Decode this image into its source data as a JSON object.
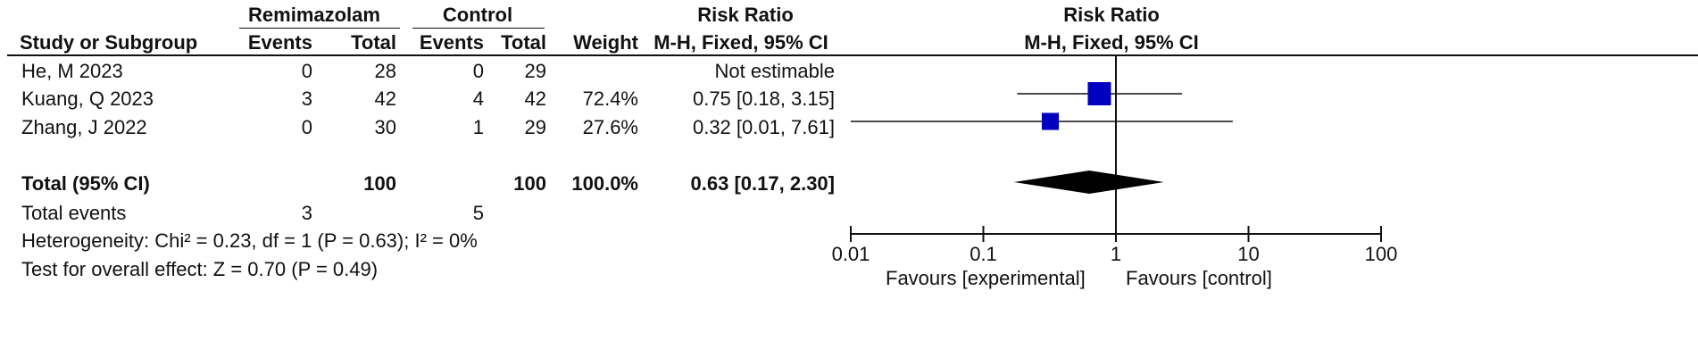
{
  "header": {
    "group1": "Remimazolam",
    "group2": "Control",
    "risk_ratio_left": "Risk Ratio",
    "risk_ratio_right": "Risk Ratio",
    "study_col": "Study or Subgroup",
    "events1": "Events",
    "total1": "Total",
    "events2": "Events",
    "total2": "Total",
    "weight": "Weight",
    "method_left": "M-H, Fixed, 95% CI",
    "method_right": "M-H, Fixed, 95% CI"
  },
  "studies": [
    {
      "name": "He, M 2023",
      "e1": "0",
      "n1": "28",
      "e2": "0",
      "n2": "29",
      "weight": "",
      "ci": "Not estimable"
    },
    {
      "name": "Kuang, Q 2023",
      "e1": "3",
      "n1": "42",
      "e2": "4",
      "n2": "42",
      "weight": "72.4%",
      "ci": "0.75 [0.18, 3.15]"
    },
    {
      "name": "Zhang, J 2022",
      "e1": "0",
      "n1": "30",
      "e2": "1",
      "n2": "29",
      "weight": "27.6%",
      "ci": "0.32 [0.01, 7.61]"
    }
  ],
  "total": {
    "name": "Total (95% CI)",
    "n1": "100",
    "n2": "100",
    "weight": "100.0%",
    "ci": "0.63 [0.17, 2.30]"
  },
  "total_events": {
    "label": "Total events",
    "e1": "3",
    "e2": "5"
  },
  "heterogeneity": "Heterogeneity: Chi² = 0.23, df = 1 (P = 0.63); I² = 0%",
  "overall_effect": "Test for overall effect: Z = 0.70 (P = 0.49)",
  "favours_left": "Favours [experimental]",
  "favours_right": "Favours [control]",
  "colors": {
    "marker": "#0000c0",
    "diamond": "#000000",
    "line": "#111111"
  },
  "chart_data": {
    "type": "forest",
    "scale": "log",
    "xlim": [
      0.01,
      100
    ],
    "ticks": [
      {
        "value": 0.01,
        "label": "0.01"
      },
      {
        "value": 0.1,
        "label": "0.1"
      },
      {
        "value": 1,
        "label": "1"
      },
      {
        "value": 10,
        "label": "10"
      },
      {
        "value": 100,
        "label": "100"
      }
    ],
    "studies": [
      {
        "name": "He, M 2023",
        "rr": null,
        "lower": null,
        "upper": null,
        "weight": 0
      },
      {
        "name": "Kuang, Q 2023",
        "rr": 0.75,
        "lower": 0.18,
        "upper": 3.15,
        "weight": 72.4
      },
      {
        "name": "Zhang, J 2022",
        "rr": 0.32,
        "lower": 0.01,
        "upper": 7.61,
        "weight": 27.6
      }
    ],
    "pooled": {
      "rr": 0.63,
      "lower": 0.17,
      "upper": 2.3
    }
  }
}
